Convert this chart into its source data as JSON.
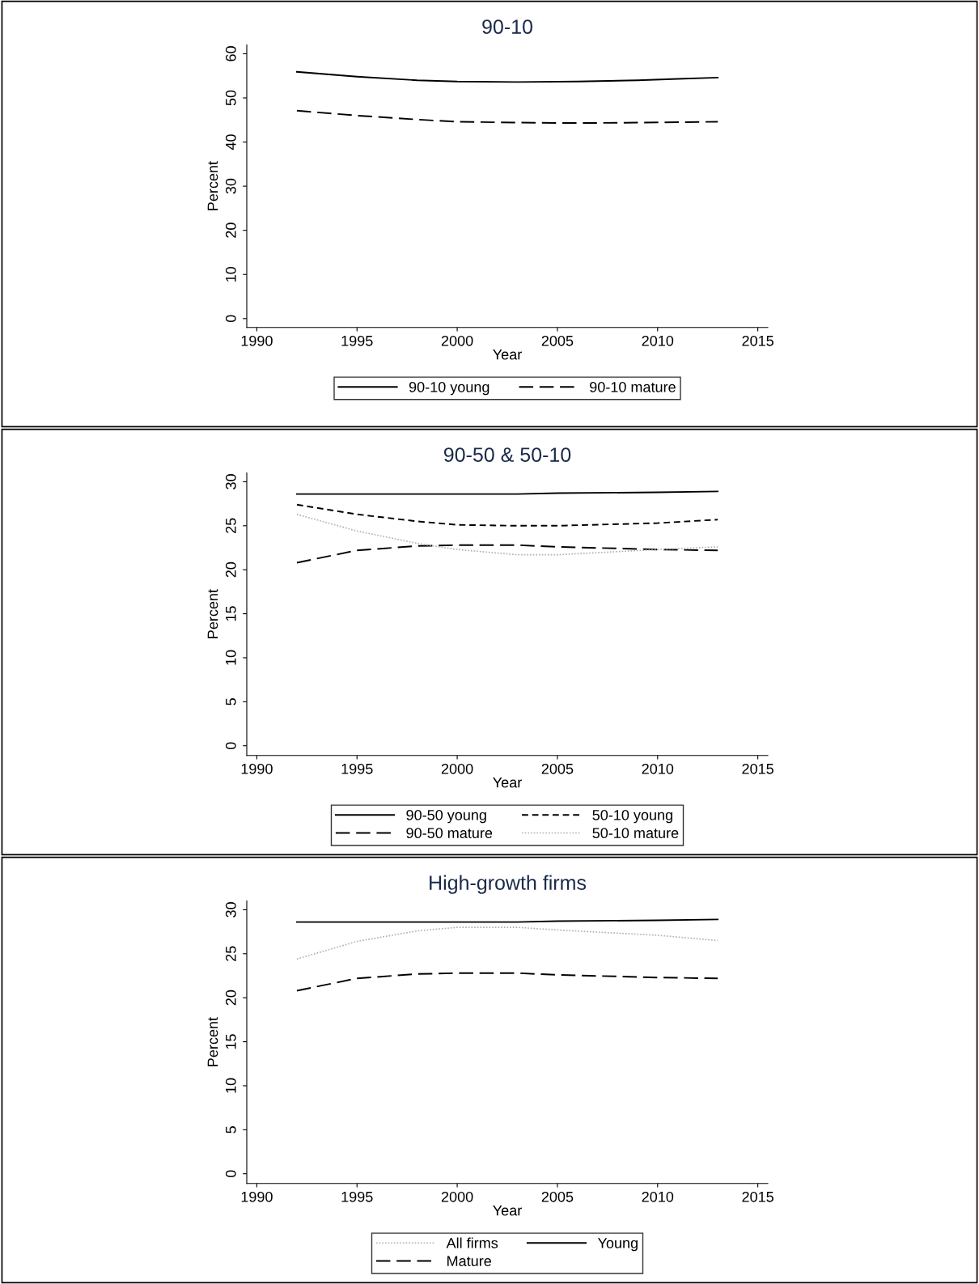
{
  "chart_data": [
    {
      "type": "line",
      "title": "90-10",
      "xlabel": "Year",
      "ylabel": "Percent",
      "xlim": [
        1989.5,
        2015.5
      ],
      "xticks": [
        1990,
        1995,
        2000,
        2005,
        2010,
        2015
      ],
      "ylim": [
        -2,
        62
      ],
      "yticks": [
        0,
        10,
        20,
        30,
        40,
        50,
        60
      ],
      "grid": false,
      "legend": "bottom",
      "x": [
        1992,
        1995,
        1998,
        2000,
        2003,
        2006,
        2009,
        2011,
        2013
      ],
      "series": [
        {
          "name": "90-10 young",
          "color": "#000000",
          "line_style": "solid",
          "values": [
            55.9,
            54.8,
            54.0,
            53.7,
            53.6,
            53.7,
            54.0,
            54.3,
            54.6
          ]
        },
        {
          "name": "90-10 mature",
          "color": "#000000",
          "line_style": "longdash",
          "values": [
            47.1,
            46.0,
            45.1,
            44.6,
            44.4,
            44.3,
            44.4,
            44.5,
            44.6
          ]
        }
      ]
    },
    {
      "type": "line",
      "title": "90-50 & 50-10",
      "xlabel": "Year",
      "ylabel": "Percent",
      "xlim": [
        1989.5,
        2015.5
      ],
      "xticks": [
        1990,
        1995,
        2000,
        2005,
        2010,
        2015
      ],
      "ylim": [
        -1.1,
        31
      ],
      "yticks": [
        0,
        5,
        10,
        15,
        20,
        25,
        30
      ],
      "grid": false,
      "legend": "bottom",
      "x": [
        1992,
        1995,
        1998,
        2000,
        2003,
        2005,
        2010,
        2013
      ],
      "series": [
        {
          "name": "90-50 young",
          "color": "#000000",
          "line_style": "solid",
          "values": [
            28.6,
            28.6,
            28.6,
            28.6,
            28.6,
            28.7,
            28.8,
            28.9
          ]
        },
        {
          "name": "90-50 mature",
          "color": "#000000",
          "line_style": "longdash",
          "values": [
            20.8,
            22.2,
            22.7,
            22.8,
            22.8,
            22.6,
            22.3,
            22.2
          ]
        },
        {
          "name": "50-10 young",
          "color": "#000000",
          "line_style": "dashed",
          "values": [
            27.4,
            26.3,
            25.5,
            25.1,
            25.0,
            25.0,
            25.3,
            25.7
          ]
        },
        {
          "name": "50-10 mature",
          "color": "#b0b0b0",
          "line_style": "dotted",
          "values": [
            26.3,
            24.4,
            23.0,
            22.3,
            21.7,
            21.7,
            22.3,
            22.6
          ]
        }
      ]
    },
    {
      "type": "line",
      "title": "High-growth firms",
      "xlabel": "Year",
      "ylabel": "Percent",
      "xlim": [
        1989.5,
        2015.5
      ],
      "xticks": [
        1990,
        1995,
        2000,
        2005,
        2010,
        2015
      ],
      "ylim": [
        -1.1,
        31
      ],
      "yticks": [
        0,
        5,
        10,
        15,
        20,
        25,
        30
      ],
      "grid": false,
      "legend": "bottom",
      "x": [
        1992,
        1995,
        1998,
        2000,
        2003,
        2005,
        2010,
        2013
      ],
      "series": [
        {
          "name": "All firms",
          "color": "#b0b0b0",
          "line_style": "dotted",
          "values": [
            24.4,
            26.4,
            27.6,
            28.0,
            28.0,
            27.7,
            27.1,
            26.5
          ]
        },
        {
          "name": "Mature",
          "color": "#000000",
          "line_style": "longdash",
          "values": [
            20.8,
            22.2,
            22.7,
            22.8,
            22.8,
            22.6,
            22.3,
            22.2
          ]
        },
        {
          "name": "Young",
          "color": "#000000",
          "line_style": "solid",
          "values": [
            28.6,
            28.6,
            28.6,
            28.6,
            28.6,
            28.7,
            28.8,
            28.9
          ]
        }
      ]
    }
  ]
}
